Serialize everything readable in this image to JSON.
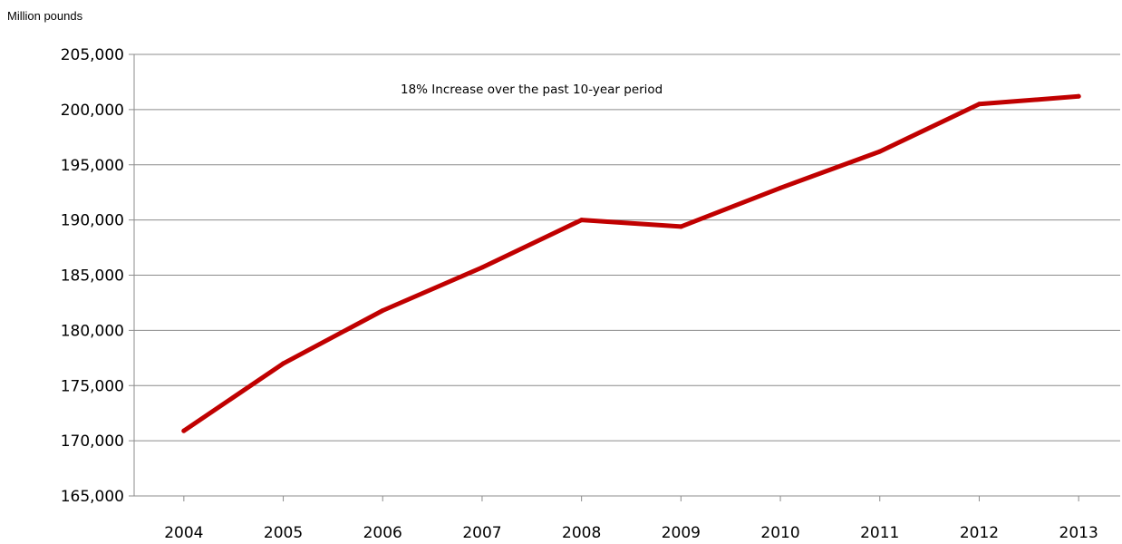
{
  "chart_data": {
    "type": "line",
    "ylabel": "Million pounds",
    "annotation": "18% Increase over the past 10-year period",
    "categories": [
      "2004",
      "2005",
      "2006",
      "2007",
      "2008",
      "2009",
      "2010",
      "2011",
      "2012",
      "2013"
    ],
    "series": [
      {
        "values": [
          170900,
          177000,
          181800,
          185700,
          190000,
          189400,
          192900,
          196200,
          200500,
          201200
        ],
        "color": "#c00000"
      }
    ],
    "ylim": [
      165000,
      205000
    ],
    "yticks": [
      165000,
      170000,
      175000,
      180000,
      185000,
      190000,
      195000,
      200000,
      205000
    ],
    "ytick_labels": [
      "165,000",
      "170,000",
      "175,000",
      "180,000",
      "185,000",
      "190,000",
      "195,000",
      "200,000",
      "205,000"
    ],
    "grid": true,
    "legend": "none"
  }
}
